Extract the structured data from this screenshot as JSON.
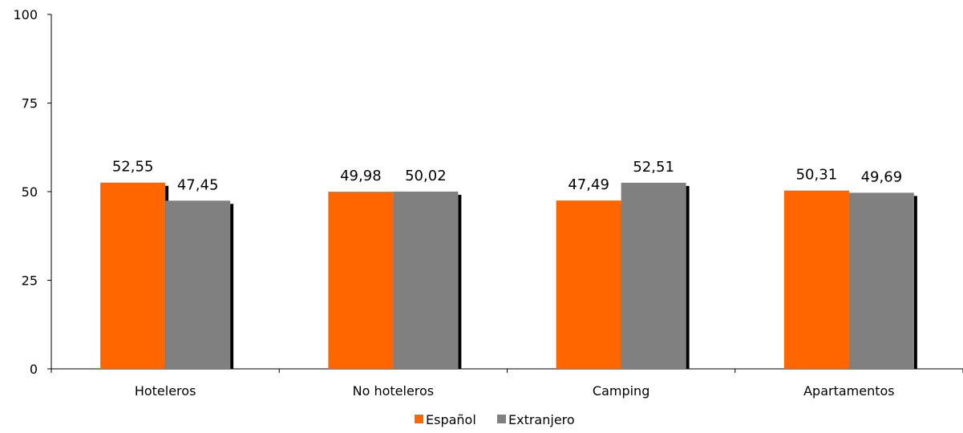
{
  "chart_data": {
    "type": "bar",
    "categories": [
      "Hoteleros",
      "No hoteleros",
      "Camping",
      "Apartamentos"
    ],
    "series": [
      {
        "name": "Español",
        "values": [
          52.55,
          49.98,
          47.49,
          50.31
        ],
        "labels": [
          "52,55",
          "49,98",
          "47,49",
          "50,31"
        ],
        "color": "#ff6600"
      },
      {
        "name": "Extranjero",
        "values": [
          47.45,
          50.02,
          52.51,
          49.69
        ],
        "labels": [
          "47,45",
          "50,02",
          "52,51",
          "49,69"
        ],
        "color": "#808080"
      }
    ],
    "ylim": [
      0,
      100
    ],
    "yticks": [
      0,
      25,
      50,
      75,
      100
    ],
    "title": "",
    "xlabel": "",
    "ylabel": "",
    "grid": false,
    "legend_position": "bottom-center",
    "shadow_color": "#000000"
  }
}
